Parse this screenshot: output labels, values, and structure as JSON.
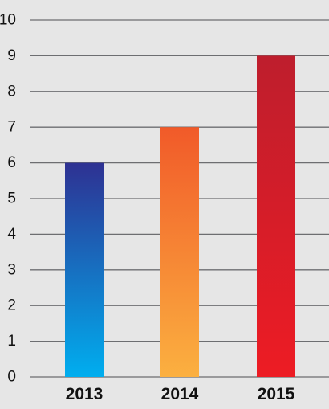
{
  "chart_data": {
    "type": "bar",
    "title": "",
    "xlabel": "",
    "ylabel": "",
    "categories": [
      "2013",
      "2014",
      "2015"
    ],
    "values": [
      6,
      7,
      9
    ],
    "ylim": [
      0,
      10
    ],
    "yticks": [
      "0",
      "1",
      "2",
      "3",
      "4",
      "5",
      "6",
      "7",
      "8",
      "9",
      "10"
    ],
    "grid": true,
    "legend": "none",
    "bar_gradients": [
      {
        "top": "#2e3192",
        "bottom": "#00aeef"
      },
      {
        "top": "#f15a29",
        "bottom": "#fbb040"
      },
      {
        "top": "#be1e2d",
        "bottom": "#ed1c24"
      }
    ],
    "background": "#e6e6e6",
    "grid_color": "#6d6e71"
  }
}
